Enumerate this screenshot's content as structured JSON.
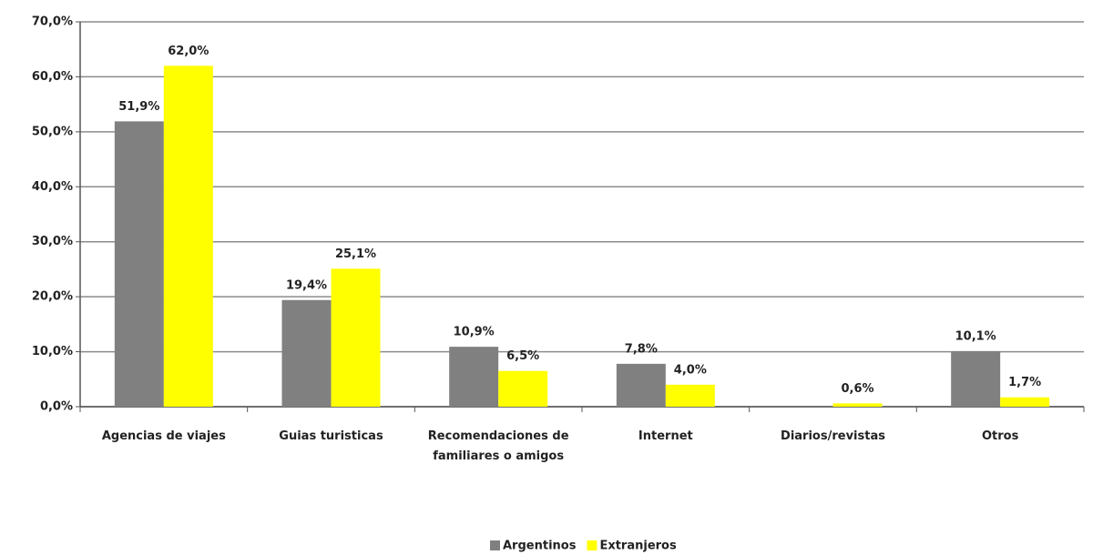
{
  "chart_data": {
    "type": "bar",
    "categories": [
      "Agencias de viajes",
      "Guias turisticas",
      "Recomendaciones de familiares o amigos",
      "Internet",
      "Diarios/revistas",
      "Otros"
    ],
    "series": [
      {
        "name": "Argentinos",
        "color": "#808080",
        "values": [
          51.9,
          19.4,
          10.9,
          7.8,
          null,
          10.1
        ],
        "value_labels": [
          "51,9%",
          "19,4%",
          "10,9%",
          "7,8%",
          null,
          "10,1%"
        ]
      },
      {
        "name": "Extranjeros",
        "color": "#ffff00",
        "values": [
          62.0,
          25.1,
          6.5,
          4.0,
          0.6,
          1.7
        ],
        "value_labels": [
          "62,0%",
          "25,1%",
          "6,5%",
          "4,0%",
          "0,6%",
          "1,7%"
        ]
      }
    ],
    "ylim": [
      0,
      70
    ],
    "yticks": [
      {
        "value": 0,
        "label": "0,0%"
      },
      {
        "value": 10,
        "label": "10,0%"
      },
      {
        "value": 20,
        "label": "20,0%"
      },
      {
        "value": 30,
        "label": "30,0%"
      },
      {
        "value": 40,
        "label": "40,0%"
      },
      {
        "value": 50,
        "label": "50,0%"
      },
      {
        "value": 60,
        "label": "60,0%"
      },
      {
        "value": 70,
        "label": "70,0%"
      }
    ],
    "grid": true,
    "legend": "bottom"
  }
}
